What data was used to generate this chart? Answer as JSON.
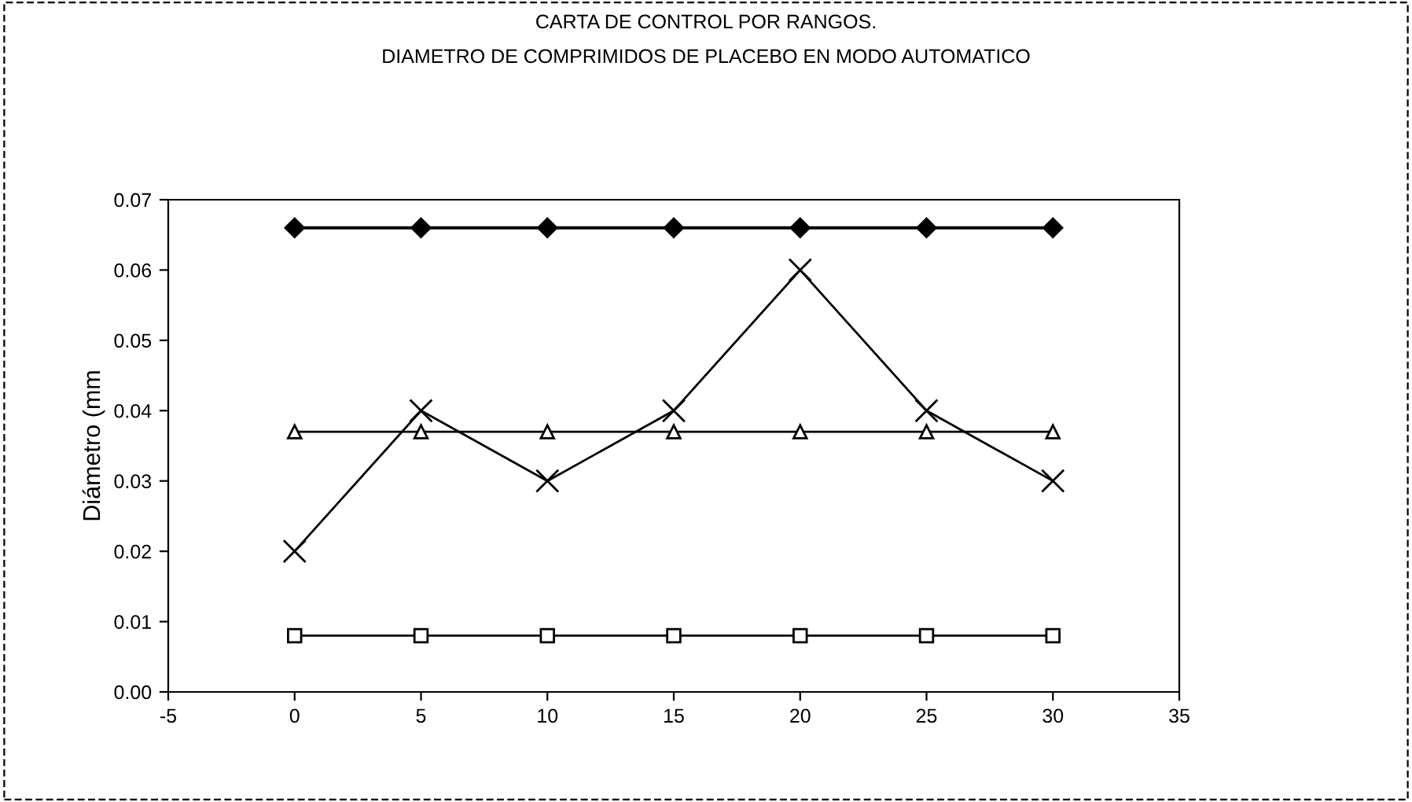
{
  "chart_data": {
    "type": "line",
    "title": "CARTA DE CONTROL POR RANGOS.",
    "subtitle": "DIAMETRO DE COMPRIMIDOS DE PLACEBO EN MODO AUTOMATICO",
    "ylabel": "Diámetro (mm",
    "x": [
      0,
      5,
      10,
      15,
      20,
      25,
      30
    ],
    "series": [
      {
        "color": "#000000",
        "marker": "diamond",
        "values": [
          0.066,
          0.066,
          0.066,
          0.066,
          0.066,
          0.066,
          0.066
        ]
      },
      {
        "color": "#000000",
        "marker": "triangle",
        "values": [
          0.037,
          0.037,
          0.037,
          0.037,
          0.037,
          0.037,
          0.037
        ]
      },
      {
        "color": "#000000",
        "marker": "cross",
        "values": [
          0.02,
          0.04,
          0.03,
          0.04,
          0.06,
          0.04,
          0.03
        ]
      },
      {
        "color": "#000000",
        "marker": "square",
        "values": [
          0.008,
          0.008,
          0.008,
          0.008,
          0.008,
          0.008,
          0.008
        ]
      }
    ],
    "xlim": [
      -5,
      35
    ],
    "xticks": [
      -5,
      0,
      5,
      10,
      15,
      20,
      25,
      30,
      35
    ],
    "ylim": [
      0,
      0.07
    ],
    "yticks": [
      {
        "value": 0,
        "label": "0.00"
      },
      {
        "value": 0.01,
        "label": "0.01"
      },
      {
        "value": 0.02,
        "label": "0.02"
      },
      {
        "value": 0.03,
        "label": "0.03"
      },
      {
        "value": 0.04,
        "label": "0.04"
      },
      {
        "value": 0.05,
        "label": "0.05"
      },
      {
        "value": 0.06,
        "label": "0.06"
      },
      {
        "value": 0.07,
        "label": "0.07"
      }
    ],
    "grid": false,
    "legend": false,
    "line_style": "solid"
  }
}
